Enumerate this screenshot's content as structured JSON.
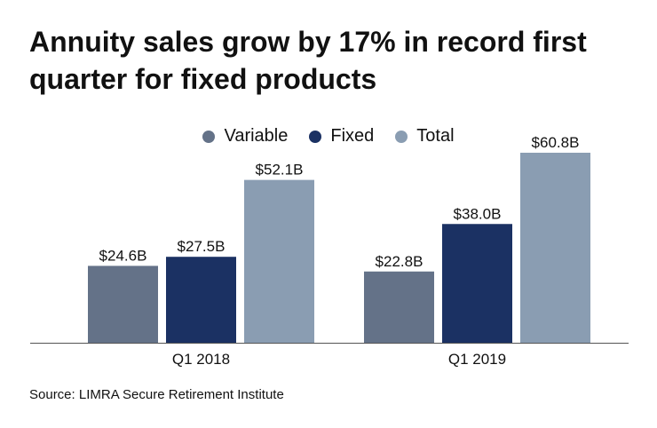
{
  "chart_data": {
    "type": "bar",
    "title": "Annuity sales grow by 17% in record first quarter for fixed products",
    "categories": [
      "Q1 2018",
      "Q1 2019"
    ],
    "series": [
      {
        "name": "Variable",
        "values": [
          24.6,
          22.8
        ],
        "labels": [
          "$24.6B",
          "$22.8B"
        ],
        "color": "#647288"
      },
      {
        "name": "Fixed",
        "values": [
          27.5,
          38.0
        ],
        "labels": [
          "$27.5B",
          "$38.0B"
        ],
        "color": "#1b3163"
      },
      {
        "name": "Total",
        "values": [
          52.1,
          60.8
        ],
        "labels": [
          "$52.1B",
          "$60.8B"
        ],
        "color": "#8a9db2"
      }
    ],
    "unit": "billions USD",
    "ylim": [
      0,
      60.8
    ],
    "grid": false,
    "legend": "top-center",
    "source": "Source: LIMRA Secure Retirement Institute"
  }
}
